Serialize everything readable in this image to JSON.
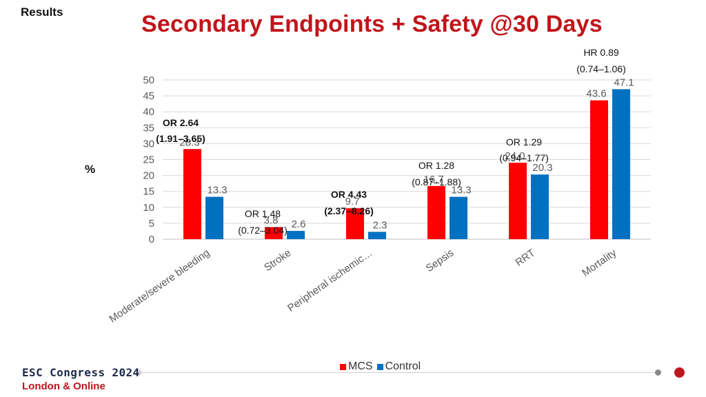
{
  "slide": {
    "section_label": "Results",
    "title": "Secondary Endpoints + Safety @30 Days",
    "title_color": "#c0151b",
    "y_unit": "%"
  },
  "chart_data": {
    "type": "bar",
    "categories": [
      "Moderate/severe bleeding",
      "Stroke",
      "Peripheral ischemic…",
      "Sepsis",
      "RRT",
      "Mortality"
    ],
    "series": [
      {
        "name": "MCS",
        "color": "#ff0000",
        "values": [
          28.3,
          3.8,
          9.7,
          16.7,
          24.0,
          43.6
        ],
        "labels": [
          "28.3",
          "3.8",
          "9.7",
          "16.7",
          "24.0",
          "43.6"
        ]
      },
      {
        "name": "Control",
        "color": "#0070c0",
        "values": [
          13.3,
          2.6,
          2.3,
          13.3,
          20.3,
          47.1
        ],
        "labels": [
          "13.3",
          "2.6",
          "2.3",
          "13.3",
          "20.3",
          "47.1"
        ]
      }
    ],
    "ylim": [
      0,
      50
    ],
    "yticks": [
      0,
      5,
      10,
      15,
      20,
      25,
      30,
      35,
      40,
      45,
      50
    ],
    "grid": true,
    "legend": "bottom",
    "annotations": [
      {
        "category": "Moderate/severe bleeding",
        "line1": "OR 2.64",
        "line2": "(1.91–3.65)",
        "bold": true
      },
      {
        "category": "Stroke",
        "line1": "OR 1.48",
        "line2": "(0.72–3.04)",
        "bold": false
      },
      {
        "category": "Peripheral ischemic…",
        "line1": "OR 4.43",
        "line2": "(2.37–8.26)",
        "bold": true
      },
      {
        "category": "Sepsis",
        "line1": "OR 1.28",
        "line2": "(0.87–1.88)",
        "bold": false
      },
      {
        "category": "RRT",
        "line1": "OR 1.29",
        "line2": "(0.94–1.77)",
        "bold": false
      },
      {
        "category": "Mortality",
        "line1": "HR 0.89",
        "line2": "(0.74–1.06)",
        "bold": false
      }
    ]
  },
  "footer": {
    "line1": "ESC Congress 2024",
    "line2": "London & Online"
  }
}
